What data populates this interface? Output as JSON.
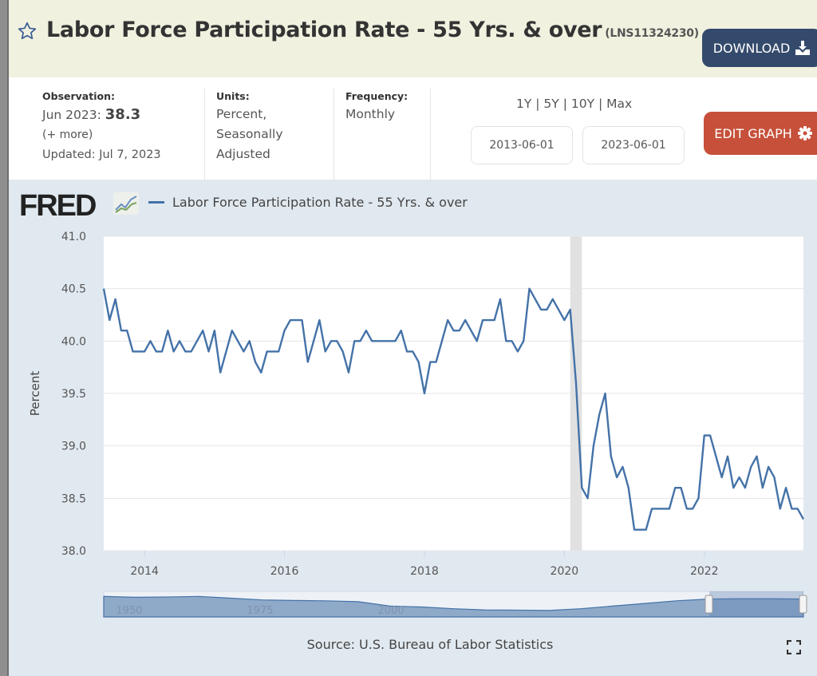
{
  "header": {
    "title": "Labor Force Participation Rate - 55 Yrs. & over",
    "series_id": "(LNS11324230)",
    "download_label": "DOWNLOAD",
    "bg_color": "#f1f1e0"
  },
  "info": {
    "observation_label": "Observation:",
    "observation_date": "Jun 2023:",
    "observation_value": "38.3",
    "more_link": "(+ more)",
    "updated": "Updated: Jul 7, 2023",
    "units_label": "Units:",
    "units_lines": [
      "Percent,",
      "Seasonally",
      "Adjusted"
    ],
    "frequency_label": "Frequency:",
    "frequency_value": "Monthly"
  },
  "controls": {
    "ranges": [
      "1Y",
      "5Y",
      "10Y",
      "Max"
    ],
    "start_date": "2013-06-01",
    "end_date": "2023-06-01",
    "edit_label": "EDIT GRAPH",
    "download_color": "#344a6c",
    "edit_color": "#c6503a"
  },
  "logo_text": "FRED",
  "source": "Source: U.S. Bureau of Labor Statistics",
  "navigator": {
    "labels": [
      "1950",
      "1975",
      "2000"
    ]
  },
  "chart_data": {
    "type": "line",
    "title": "",
    "xlabel": "",
    "ylabel": "Percent",
    "x_start": "2013-06",
    "x_frequency": "monthly",
    "x_range": [
      "2013-06",
      "2023-06"
    ],
    "xticks": [
      "2014",
      "2016",
      "2018",
      "2020",
      "2022"
    ],
    "ylim": [
      38.0,
      41.0
    ],
    "yticks": [
      "38.0",
      "38.5",
      "39.0",
      "39.5",
      "40.0",
      "40.5",
      "41.0"
    ],
    "grid": true,
    "legend": "top-left",
    "recession": [
      "2020-02",
      "2020-04"
    ],
    "series": [
      {
        "name": "Labor Force Participation Rate - 55 Yrs. & over",
        "color": "#4472a8",
        "values": [
          40.5,
          40.2,
          40.4,
          40.1,
          40.1,
          39.9,
          39.9,
          39.9,
          40.0,
          39.9,
          39.9,
          40.1,
          39.9,
          40.0,
          39.9,
          39.9,
          40.0,
          40.1,
          39.9,
          40.1,
          39.7,
          39.9,
          40.1,
          40.0,
          39.9,
          40.0,
          39.8,
          39.7,
          39.9,
          39.9,
          39.9,
          40.1,
          40.2,
          40.2,
          40.2,
          39.8,
          40.0,
          40.2,
          39.9,
          40.0,
          40.0,
          39.9,
          39.7,
          40.0,
          40.0,
          40.1,
          40.0,
          40.0,
          40.0,
          40.0,
          40.0,
          40.1,
          39.9,
          39.9,
          39.8,
          39.5,
          39.8,
          39.8,
          40.0,
          40.2,
          40.1,
          40.1,
          40.2,
          40.1,
          40.0,
          40.2,
          40.2,
          40.2,
          40.4,
          40.0,
          40.0,
          39.9,
          40.0,
          40.5,
          40.4,
          40.3,
          40.3,
          40.4,
          40.3,
          40.2,
          40.3,
          39.6,
          38.6,
          38.5,
          39.0,
          39.3,
          39.5,
          38.9,
          38.7,
          38.8,
          38.6,
          38.2,
          38.2,
          38.2,
          38.4,
          38.4,
          38.4,
          38.4,
          38.6,
          38.6,
          38.4,
          38.4,
          38.5,
          39.1,
          39.1,
          38.9,
          38.7,
          38.9,
          38.6,
          38.7,
          38.6,
          38.8,
          38.9,
          38.6,
          38.8,
          38.7,
          38.4,
          38.6,
          38.4,
          38.4,
          38.3
        ]
      }
    ]
  }
}
